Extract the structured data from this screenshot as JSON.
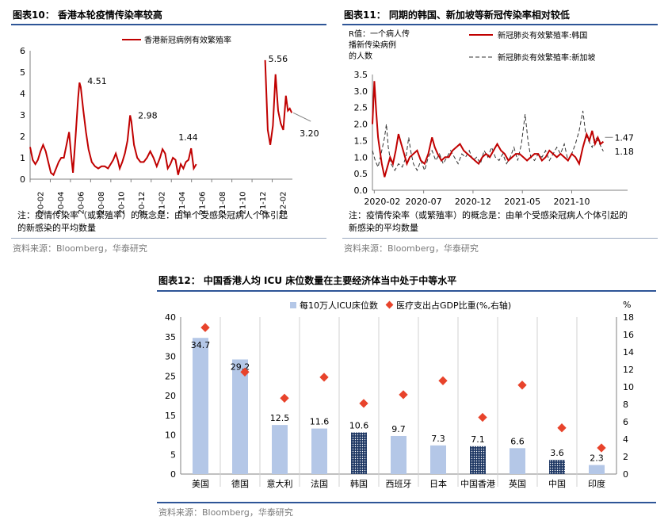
{
  "fig10": {
    "title": "图表10：  香港本轮疫情传染率较高",
    "note_line1": "注：疫情传染率（或繁殖率）的概念是：由单个受感染冠病人个体引起",
    "note_line2": "的新感染的平均数量",
    "source": "资料来源：Bloomberg，华泰研究"
  },
  "fig11": {
    "title": "图表11：  同期的韩国、新加坡等新冠传染率相对较低",
    "note_line1": "注：疫情传染率（或繁殖率）的概念是：由单个受感染冠病人个体引起的",
    "note_line2": "新感染的平均数量",
    "source": "资料来源：Bloomberg，华泰研究"
  },
  "fig12": {
    "title": "图表12：  中国香港人均 ICU 床位数量在主要经济体当中处于中等水平",
    "source": "资料来源：Bloomberg，华泰研究"
  },
  "colors": {
    "red": "#c00000",
    "bar": "#b4c7e7",
    "navy": "#1f3864",
    "marker": "#e8432b",
    "rule": "#2e5597"
  },
  "chart_data": [
    {
      "id": "fig10",
      "type": "line",
      "title": "香港本轮疫情传染率较高",
      "series": [
        {
          "name": "香港新冠病例有效繁殖率",
          "segment1": [
            [
              0,
              1.5
            ],
            [
              0.4,
              0.9
            ],
            [
              0.8,
              0.7
            ],
            [
              1.2,
              0.9
            ],
            [
              1.6,
              1.3
            ],
            [
              2.0,
              1.6
            ],
            [
              2.4,
              1.3
            ],
            [
              2.8,
              0.8
            ],
            [
              3.2,
              0.3
            ],
            [
              3.6,
              0.2
            ],
            [
              4.0,
              0.5
            ],
            [
              4.4,
              0.8
            ],
            [
              4.8,
              1.0
            ],
            [
              5.2,
              1.0
            ],
            [
              5.6,
              1.6
            ],
            [
              6.0,
              2.2
            ],
            [
              6.3,
              1.2
            ],
            [
              6.6,
              0.3
            ],
            [
              7.0,
              2.0
            ],
            [
              7.4,
              3.8
            ],
            [
              7.6,
              4.51
            ],
            [
              7.8,
              4.3
            ],
            [
              8.2,
              3.2
            ],
            [
              8.6,
              2.2
            ],
            [
              9.0,
              1.4
            ],
            [
              9.5,
              0.8
            ],
            [
              10.0,
              0.6
            ],
            [
              10.5,
              0.5
            ],
            [
              11.0,
              0.6
            ],
            [
              11.5,
              0.6
            ],
            [
              12.0,
              0.5
            ],
            [
              12.4,
              0.7
            ],
            [
              12.8,
              0.9
            ],
            [
              13.2,
              1.2
            ],
            [
              13.5,
              0.9
            ],
            [
              13.8,
              0.5
            ],
            [
              14.2,
              0.8
            ],
            [
              14.6,
              1.2
            ],
            [
              15.0,
              1.8
            ],
            [
              15.4,
              2.98
            ],
            [
              15.6,
              2.7
            ],
            [
              16.0,
              1.6
            ],
            [
              16.5,
              1.0
            ],
            [
              17.0,
              0.8
            ],
            [
              17.5,
              0.8
            ],
            [
              18.0,
              1.0
            ],
            [
              18.5,
              1.3
            ],
            [
              19.0,
              1.0
            ],
            [
              19.5,
              0.6
            ],
            [
              20.0,
              1.0
            ],
            [
              20.4,
              1.4
            ],
            [
              20.8,
              1.2
            ],
            [
              21.2,
              0.5
            ],
            [
              21.6,
              0.7
            ],
            [
              22.0,
              1.0
            ],
            [
              22.4,
              0.9
            ],
            [
              22.8,
              0.2
            ],
            [
              23.2,
              0.7
            ],
            [
              23.6,
              0.5
            ],
            [
              24.0,
              0.8
            ],
            [
              24.4,
              0.9
            ],
            [
              24.8,
              1.44
            ],
            [
              25.2,
              0.5
            ],
            [
              25.6,
              0.7
            ]
          ],
          "segment2": [
            [
              36.2,
              5.56
            ],
            [
              36.6,
              2.3
            ],
            [
              37.0,
              1.6
            ],
            [
              37.4,
              2.5
            ],
            [
              37.8,
              4.9
            ],
            [
              38.2,
              3.2
            ],
            [
              38.6,
              2.6
            ],
            [
              39.0,
              2.3
            ],
            [
              39.4,
              3.9
            ],
            [
              39.7,
              3.2
            ],
            [
              40.0,
              3.3
            ],
            [
              40.3,
              3.1
            ]
          ]
        }
      ],
      "x_ticks": [
        "20-02",
        "20-04",
        "20-06",
        "20-08",
        "20-10",
        "20-12",
        "21-02",
        "21-04",
        "21-06",
        "21-08",
        "21-10",
        "21-12",
        "22-02"
      ],
      "ylim": [
        0,
        6
      ],
      "y_ticks": [
        "0",
        "1",
        "2",
        "3",
        "4",
        "5",
        "6"
      ],
      "annotations": [
        "4.51",
        "2.98",
        "1.44",
        "5.56",
        "3.20"
      ]
    },
    {
      "id": "fig11",
      "type": "line",
      "title": "同期的韩国、新加坡等新冠传染率相对较低",
      "ylabel": "R值：一个病人传播新传染病例的人数",
      "ylim": [
        0,
        3.5
      ],
      "y_ticks": [
        "0.0",
        "0.5",
        "1.0",
        "1.5",
        "2.0",
        "2.5",
        "3.0",
        "3.5"
      ],
      "x_ticks": [
        "2020-02",
        "2020-07",
        "2020-12",
        "2021-05",
        "2021-10"
      ],
      "series": [
        {
          "name": "新冠肺炎有效繁殖率:韩国",
          "style": "solid",
          "values": [
            [
              0,
              2.0
            ],
            [
              0.2,
              3.3
            ],
            [
              0.4,
              2.4
            ],
            [
              0.6,
              1.6
            ],
            [
              0.8,
              1.2
            ],
            [
              1.0,
              0.8
            ],
            [
              1.3,
              0.4
            ],
            [
              1.6,
              0.7
            ],
            [
              1.9,
              1.0
            ],
            [
              2.2,
              0.8
            ],
            [
              2.5,
              1.2
            ],
            [
              2.8,
              1.7
            ],
            [
              3.1,
              1.4
            ],
            [
              3.4,
              1.1
            ],
            [
              3.7,
              0.8
            ],
            [
              4.0,
              1.0
            ],
            [
              4.4,
              1.1
            ],
            [
              4.8,
              1.2
            ],
            [
              5.2,
              0.9
            ],
            [
              5.6,
              0.8
            ],
            [
              6.0,
              1.1
            ],
            [
              6.4,
              1.6
            ],
            [
              6.7,
              1.3
            ],
            [
              7.0,
              1.1
            ],
            [
              7.4,
              0.9
            ],
            [
              7.8,
              1.0
            ],
            [
              8.2,
              1.0
            ],
            [
              8.6,
              1.2
            ],
            [
              9.0,
              1.3
            ],
            [
              9.4,
              1.4
            ],
            [
              9.8,
              1.2
            ],
            [
              10.2,
              1.1
            ],
            [
              10.6,
              1.0
            ],
            [
              11.0,
              0.9
            ],
            [
              11.4,
              0.8
            ],
            [
              11.8,
              1.0
            ],
            [
              12.2,
              1.1
            ],
            [
              12.6,
              1.0
            ],
            [
              13.0,
              1.2
            ],
            [
              13.4,
              1.4
            ],
            [
              13.8,
              1.2
            ],
            [
              14.2,
              1.1
            ],
            [
              14.6,
              0.9
            ],
            [
              15.0,
              1.0
            ],
            [
              15.4,
              1.1
            ],
            [
              15.8,
              1.1
            ],
            [
              16.2,
              1.0
            ],
            [
              16.6,
              0.9
            ],
            [
              17.0,
              1.0
            ],
            [
              17.4,
              1.1
            ],
            [
              17.8,
              1.1
            ],
            [
              18.2,
              0.9
            ],
            [
              18.6,
              1.0
            ],
            [
              19.0,
              1.2
            ],
            [
              19.4,
              1.1
            ],
            [
              19.8,
              1.0
            ],
            [
              20.2,
              1.1
            ],
            [
              20.6,
              1.0
            ],
            [
              21.0,
              0.9
            ],
            [
              21.4,
              1.1
            ],
            [
              21.8,
              1.0
            ],
            [
              22.2,
              0.8
            ],
            [
              22.6,
              1.3
            ],
            [
              23.0,
              1.7
            ],
            [
              23.3,
              1.5
            ],
            [
              23.6,
              1.8
            ],
            [
              23.9,
              1.4
            ],
            [
              24.2,
              1.6
            ],
            [
              24.5,
              1.4
            ],
            [
              24.8,
              1.47
            ]
          ]
        },
        {
          "name": "新冠肺炎有效繁殖率:新加坡",
          "style": "dashed",
          "values": [
            [
              0,
              1.2
            ],
            [
              0.3,
              0.9
            ],
            [
              0.6,
              0.7
            ],
            [
              1.0,
              1.2
            ],
            [
              1.3,
              1.6
            ],
            [
              1.5,
              2.0
            ],
            [
              1.7,
              1.3
            ],
            [
              2.0,
              0.8
            ],
            [
              2.4,
              0.6
            ],
            [
              2.8,
              0.8
            ],
            [
              3.2,
              0.7
            ],
            [
              3.6,
              1.0
            ],
            [
              3.9,
              1.6
            ],
            [
              4.1,
              1.2
            ],
            [
              4.4,
              0.8
            ],
            [
              4.8,
              0.6
            ],
            [
              5.2,
              0.9
            ],
            [
              5.6,
              0.6
            ],
            [
              6.0,
              1.0
            ],
            [
              6.4,
              1.2
            ],
            [
              6.8,
              0.9
            ],
            [
              7.2,
              1.1
            ],
            [
              7.6,
              0.8
            ],
            [
              8.0,
              1.0
            ],
            [
              8.4,
              1.2
            ],
            [
              8.8,
              1.0
            ],
            [
              9.2,
              0.8
            ],
            [
              9.6,
              1.1
            ],
            [
              10.0,
              1.0
            ],
            [
              10.4,
              1.2
            ],
            [
              10.8,
              0.9
            ],
            [
              11.2,
              1.0
            ],
            [
              11.6,
              0.8
            ],
            [
              12.0,
              1.2
            ],
            [
              12.4,
              1.0
            ],
            [
              12.8,
              1.3
            ],
            [
              13.2,
              1.0
            ],
            [
              13.6,
              0.9
            ],
            [
              14.0,
              1.1
            ],
            [
              14.4,
              0.8
            ],
            [
              14.8,
              1.0
            ],
            [
              15.2,
              1.3
            ],
            [
              15.6,
              0.9
            ],
            [
              16.0,
              1.4
            ],
            [
              16.4,
              2.3
            ],
            [
              16.7,
              1.5
            ],
            [
              17.0,
              1.0
            ],
            [
              17.4,
              0.9
            ],
            [
              17.8,
              1.1
            ],
            [
              18.2,
              1.0
            ],
            [
              18.6,
              1.2
            ],
            [
              19.0,
              0.9
            ],
            [
              19.4,
              1.1
            ],
            [
              19.8,
              1.3
            ],
            [
              20.2,
              1.1
            ],
            [
              20.6,
              1.4
            ],
            [
              21.0,
              0.9
            ],
            [
              21.4,
              1.1
            ],
            [
              21.8,
              1.4
            ],
            [
              22.2,
              1.8
            ],
            [
              22.6,
              2.4
            ],
            [
              22.9,
              1.7
            ],
            [
              23.2,
              1.5
            ],
            [
              23.6,
              1.3
            ],
            [
              24.0,
              1.6
            ],
            [
              24.4,
              1.4
            ],
            [
              24.8,
              1.18
            ]
          ]
        }
      ],
      "annotations": [
        "1.47",
        "1.18"
      ]
    },
    {
      "id": "fig12",
      "type": "bar",
      "title": "中国香港人均ICU床位数量在主要经济体当中处于中等水平",
      "categories": [
        "美国",
        "德国",
        "意大利",
        "法国",
        "韩国",
        "西班牙",
        "日本",
        "中国香港",
        "英国",
        "中国",
        "印度"
      ],
      "series": [
        {
          "name": "每10万人ICU床位数",
          "axis": "left",
          "values": [
            34.7,
            29.2,
            12.5,
            11.6,
            10.6,
            9.7,
            7.3,
            7.1,
            6.6,
            3.6,
            2.3
          ]
        },
        {
          "name": "医疗支出占GDP比重(%,右轴)",
          "axis": "right",
          "type": "scatter",
          "values": [
            16.8,
            11.7,
            8.7,
            11.1,
            8.1,
            9.1,
            10.7,
            6.5,
            10.2,
            5.3,
            3.0
          ]
        }
      ],
      "highlight": [
        "韩国",
        "中国香港",
        "中国"
      ],
      "ylim": [
        0,
        40
      ],
      "y_ticks": [
        "0",
        "5",
        "10",
        "15",
        "20",
        "25",
        "30",
        "35",
        "40"
      ],
      "y2lim": [
        0,
        18
      ],
      "y2_ticks": [
        "0",
        "2",
        "4",
        "6",
        "8",
        "10",
        "12",
        "14",
        "16",
        "18"
      ],
      "y2_unit": "%"
    }
  ]
}
